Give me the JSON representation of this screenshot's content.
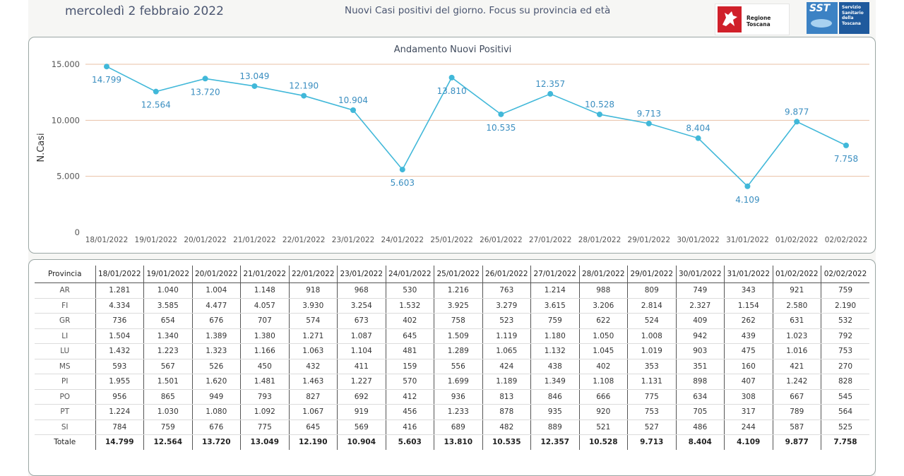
{
  "header": {
    "date": "mercoledì 2 febbraio 2022",
    "title": "Nuovi Casi positivi del giorno. Focus su provincia ed età",
    "logo_regione": "Regione Toscana",
    "logo_sst_abbr": "SST",
    "logo_sst_lines": [
      "Servizio",
      "Sanitario",
      "della",
      "Toscana"
    ]
  },
  "chart_data": {
    "type": "line",
    "title": "Andamento Nuovi Positivi",
    "xlabel": "",
    "ylabel": "N.Casi",
    "ylim": [
      0,
      15000
    ],
    "yticks": [
      "0",
      "5.000",
      "10.000",
      "15.000"
    ],
    "ytick_values": [
      0,
      5000,
      10000,
      15000
    ],
    "grid": true,
    "colors": {
      "line": "#41b8d9",
      "grid": "#e9c1a6",
      "label": "#3a8ec0"
    },
    "categories": [
      "18/01/2022",
      "19/01/2022",
      "20/01/2022",
      "21/01/2022",
      "22/01/2022",
      "23/01/2022",
      "24/01/2022",
      "25/01/2022",
      "26/01/2022",
      "27/01/2022",
      "28/01/2022",
      "29/01/2022",
      "30/01/2022",
      "31/01/2022",
      "01/02/2022",
      "02/02/2022"
    ],
    "values": [
      14799,
      12564,
      13720,
      13049,
      12190,
      10904,
      5603,
      13810,
      10535,
      12357,
      10528,
      9713,
      8404,
      4109,
      9877,
      7758
    ],
    "labels": [
      "14.799",
      "12.564",
      "13.720",
      "13.049",
      "12.190",
      "10.904",
      "5.603",
      "13.810",
      "10.535",
      "12.357",
      "10.528",
      "9.713",
      "8.404",
      "4.109",
      "9.877",
      "7.758"
    ],
    "label_positions": [
      "below",
      "below",
      "below",
      "above",
      "above",
      "above",
      "below",
      "below",
      "below",
      "above",
      "above",
      "above",
      "above",
      "below",
      "above",
      "below"
    ]
  },
  "table": {
    "header_label": "Provincia",
    "dates": [
      "18/01/2022",
      "19/01/2022",
      "20/01/2022",
      "21/01/2022",
      "22/01/2022",
      "23/01/2022",
      "24/01/2022",
      "25/01/2022",
      "26/01/2022",
      "27/01/2022",
      "28/01/2022",
      "29/01/2022",
      "30/01/2022",
      "31/01/2022",
      "01/02/2022",
      "02/02/2022"
    ],
    "rows": [
      {
        "provincia": "AR",
        "values": [
          "1.281",
          "1.040",
          "1.004",
          "1.148",
          "918",
          "968",
          "530",
          "1.216",
          "763",
          "1.214",
          "988",
          "809",
          "749",
          "343",
          "921",
          "759"
        ]
      },
      {
        "provincia": "FI",
        "values": [
          "4.334",
          "3.585",
          "4.477",
          "4.057",
          "3.930",
          "3.254",
          "1.532",
          "3.925",
          "3.279",
          "3.615",
          "3.206",
          "2.814",
          "2.327",
          "1.154",
          "2.580",
          "2.190"
        ]
      },
      {
        "provincia": "GR",
        "values": [
          "736",
          "654",
          "676",
          "707",
          "574",
          "673",
          "402",
          "758",
          "523",
          "759",
          "622",
          "524",
          "409",
          "262",
          "631",
          "532"
        ]
      },
      {
        "provincia": "LI",
        "values": [
          "1.504",
          "1.340",
          "1.389",
          "1.380",
          "1.271",
          "1.087",
          "645",
          "1.509",
          "1.119",
          "1.180",
          "1.050",
          "1.008",
          "942",
          "439",
          "1.023",
          "792"
        ]
      },
      {
        "provincia": "LU",
        "values": [
          "1.432",
          "1.223",
          "1.323",
          "1.166",
          "1.063",
          "1.104",
          "481",
          "1.289",
          "1.065",
          "1.132",
          "1.045",
          "1.019",
          "903",
          "475",
          "1.016",
          "753"
        ]
      },
      {
        "provincia": "MS",
        "values": [
          "593",
          "567",
          "526",
          "450",
          "432",
          "411",
          "159",
          "556",
          "424",
          "438",
          "402",
          "353",
          "351",
          "160",
          "421",
          "270"
        ]
      },
      {
        "provincia": "PI",
        "values": [
          "1.955",
          "1.501",
          "1.620",
          "1.481",
          "1.463",
          "1.227",
          "570",
          "1.699",
          "1.189",
          "1.349",
          "1.108",
          "1.131",
          "898",
          "407",
          "1.242",
          "828"
        ]
      },
      {
        "provincia": "PO",
        "values": [
          "956",
          "865",
          "949",
          "793",
          "827",
          "692",
          "412",
          "936",
          "813",
          "846",
          "666",
          "775",
          "634",
          "308",
          "667",
          "545"
        ]
      },
      {
        "provincia": "PT",
        "values": [
          "1.224",
          "1.030",
          "1.080",
          "1.092",
          "1.067",
          "919",
          "456",
          "1.233",
          "878",
          "935",
          "920",
          "753",
          "705",
          "317",
          "789",
          "564"
        ]
      },
      {
        "provincia": "SI",
        "values": [
          "784",
          "759",
          "676",
          "775",
          "645",
          "569",
          "416",
          "689",
          "482",
          "889",
          "521",
          "527",
          "486",
          "244",
          "587",
          "525"
        ]
      }
    ],
    "total": {
      "provincia": "Totale",
      "values": [
        "14.799",
        "12.564",
        "13.720",
        "13.049",
        "12.190",
        "10.904",
        "5.603",
        "13.810",
        "10.535",
        "12.357",
        "10.528",
        "9.713",
        "8.404",
        "4.109",
        "9.877",
        "7.758"
      ]
    }
  }
}
